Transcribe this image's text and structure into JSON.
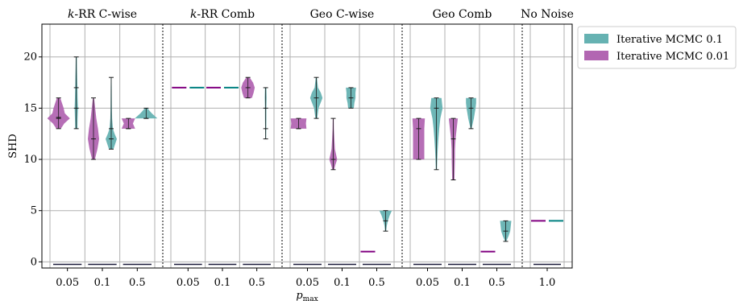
{
  "chart_data": {
    "type": "violin",
    "ylabel": "SHD",
    "xlabel": "p",
    "xlabel_sub": "max",
    "ylim": [
      -0.6,
      23.2
    ],
    "yticks": [
      0,
      5,
      10,
      15,
      20
    ],
    "grid": true,
    "legend_position": "outside-top-right",
    "series": [
      {
        "name": "Iterative MCMC  0.1",
        "color": "#66b2b2"
      },
      {
        "name": "Iterative MCMC  0.01",
        "color": "#b266b2"
      }
    ],
    "colors": {
      "teal_fill": "#66b2b2",
      "teal_line": "#008080",
      "purple_fill": "#b266b2",
      "purple_line": "#800080",
      "grid": "#b0b0b0",
      "floor_line": "#1a1a3a"
    },
    "panels": [
      {
        "title": "k-RR C-wise",
        "title_prefix": "k",
        "title_rest": "-RR C-wise",
        "groups": [
          {
            "label": "0.05",
            "violins": [
              {
                "series": 1,
                "min": 13,
                "max": 16,
                "median": 14,
                "mean": 14.1,
                "width": [
                  [
                    13,
                    0.2
                  ],
                  [
                    13.5,
                    0.5
                  ],
                  [
                    14,
                    1
                  ],
                  [
                    14.5,
                    0.55
                  ],
                  [
                    15,
                    0.45
                  ],
                  [
                    15.5,
                    0.3
                  ],
                  [
                    16,
                    0.15
                  ]
                ]
              },
              {
                "series": 0,
                "min": 13,
                "max": 20,
                "median": 15,
                "mean": 17,
                "width": [
                  [
                    13,
                    0.1
                  ],
                  [
                    14,
                    0.12
                  ],
                  [
                    15,
                    0.15
                  ],
                  [
                    16,
                    0.12
                  ],
                  [
                    17,
                    0.1
                  ],
                  [
                    18,
                    0.08
                  ],
                  [
                    19,
                    0.06
                  ],
                  [
                    20,
                    0.05
                  ]
                ]
              }
            ]
          },
          {
            "label": "0.1",
            "violins": [
              {
                "series": 1,
                "min": 10,
                "max": 16,
                "median": 12,
                "mean": 12,
                "width": [
                  [
                    10,
                    0.12
                  ],
                  [
                    11,
                    0.35
                  ],
                  [
                    12,
                    0.5
                  ],
                  [
                    13,
                    0.4
                  ],
                  [
                    14,
                    0.25
                  ],
                  [
                    15,
                    0.15
                  ],
                  [
                    16,
                    0.05
                  ]
                ]
              },
              {
                "series": 0,
                "min": 11,
                "max": 18,
                "median": 12,
                "mean": 13,
                "width": [
                  [
                    11,
                    0.2
                  ],
                  [
                    12,
                    0.5
                  ],
                  [
                    12.5,
                    0.3
                  ],
                  [
                    13,
                    0.15
                  ],
                  [
                    14,
                    0.08
                  ],
                  [
                    15,
                    0.06
                  ],
                  [
                    16,
                    0.05
                  ],
                  [
                    17,
                    0.04
                  ],
                  [
                    18,
                    0.03
                  ]
                ]
              }
            ]
          },
          {
            "label": "0.5",
            "violins": [
              {
                "series": 1,
                "min": 13,
                "max": 14,
                "median": 13,
                "mean": 13,
                "width": [
                  [
                    13,
                    0.6
                  ],
                  [
                    13.5,
                    0.4
                  ],
                  [
                    14,
                    0.6
                  ]
                ]
              },
              {
                "series": 0,
                "min": 14,
                "max": 15,
                "median": 14,
                "mean": 14,
                "width": [
                  [
                    14,
                    1
                  ],
                  [
                    14.5,
                    0.5
                  ],
                  [
                    15,
                    0.1
                  ]
                ]
              }
            ]
          }
        ]
      },
      {
        "title": "k-RR Comb",
        "title_prefix": "k",
        "title_rest": "-RR Comb",
        "groups": [
          {
            "label": "0.05",
            "violins": [
              {
                "series": 1,
                "min": 17,
                "max": 17,
                "median": 17,
                "mean": 17,
                "width": []
              },
              {
                "series": 0,
                "min": 17,
                "max": 17,
                "median": 17,
                "mean": 17,
                "width": []
              }
            ]
          },
          {
            "label": "0.1",
            "violins": [
              {
                "series": 1,
                "min": 17,
                "max": 17,
                "median": 17,
                "mean": 17,
                "width": []
              },
              {
                "series": 0,
                "min": 17,
                "max": 17,
                "median": 17,
                "mean": 17,
                "width": []
              }
            ]
          },
          {
            "label": "0.5",
            "violins": [
              {
                "series": 1,
                "min": 16,
                "max": 18,
                "median": 17,
                "mean": 17,
                "width": [
                  [
                    16,
                    0.35
                  ],
                  [
                    16.5,
                    0.5
                  ],
                  [
                    17,
                    0.6
                  ],
                  [
                    17.5,
                    0.45
                  ],
                  [
                    18,
                    0.15
                  ]
                ]
              },
              {
                "series": 0,
                "min": 12,
                "max": 17,
                "median": 15,
                "mean": 13,
                "width": [
                  [
                    12,
                    0.04
                  ],
                  [
                    13,
                    0.05
                  ],
                  [
                    14,
                    0.06
                  ],
                  [
                    15,
                    0.06
                  ],
                  [
                    16,
                    0.08
                  ],
                  [
                    17,
                    0.06
                  ]
                ]
              }
            ]
          }
        ]
      },
      {
        "title": "Geo C-wise",
        "title_prefix": "",
        "title_rest": "Geo C-wise",
        "groups": [
          {
            "label": "0.05",
            "violins": [
              {
                "series": 1,
                "min": 13,
                "max": 14,
                "median": 13,
                "mean": 13,
                "width": [
                  [
                    13,
                    0.7
                  ],
                  [
                    13.5,
                    0.65
                  ],
                  [
                    14,
                    0.7
                  ]
                ]
              },
              {
                "series": 0,
                "min": 14,
                "max": 18,
                "median": 16,
                "mean": 16,
                "width": [
                  [
                    14,
                    0.08
                  ],
                  [
                    15,
                    0.2
                  ],
                  [
                    16,
                    0.55
                  ],
                  [
                    16.5,
                    0.4
                  ],
                  [
                    17,
                    0.15
                  ],
                  [
                    18,
                    0.05
                  ]
                ]
              }
            ]
          },
          {
            "label": "0.1",
            "violins": [
              {
                "series": 1,
                "min": 9,
                "max": 14,
                "median": 10,
                "mean": 10,
                "width": [
                  [
                    9,
                    0.08
                  ],
                  [
                    9.5,
                    0.2
                  ],
                  [
                    10,
                    0.35
                  ],
                  [
                    10.5,
                    0.25
                  ],
                  [
                    11,
                    0.15
                  ],
                  [
                    12,
                    0.1
                  ],
                  [
                    13,
                    0.06
                  ],
                  [
                    14,
                    0.04
                  ]
                ]
              },
              {
                "series": 0,
                "min": 15,
                "max": 17,
                "median": 16,
                "mean": 16,
                "width": [
                  [
                    15,
                    0.25
                  ],
                  [
                    15.5,
                    0.3
                  ],
                  [
                    16,
                    0.4
                  ],
                  [
                    16.5,
                    0.4
                  ],
                  [
                    17,
                    0.45
                  ]
                ]
              }
            ]
          },
          {
            "label": "0.5",
            "violins": [
              {
                "series": 1,
                "min": 1,
                "max": 1,
                "median": 1,
                "mean": 1,
                "width": []
              },
              {
                "series": 0,
                "min": 3,
                "max": 5,
                "median": 4,
                "mean": 4,
                "width": [
                  [
                    3,
                    0.05
                  ],
                  [
                    3.5,
                    0.1
                  ],
                  [
                    4,
                    0.2
                  ],
                  [
                    4.5,
                    0.35
                  ],
                  [
                    5,
                    0.55
                  ]
                ]
              }
            ]
          }
        ]
      },
      {
        "title": "Geo Comb",
        "title_prefix": "",
        "title_rest": "Geo Comb",
        "groups": [
          {
            "label": "0.05",
            "violins": [
              {
                "series": 1,
                "min": 10,
                "max": 14,
                "median": 13,
                "mean": 13,
                "width": [
                  [
                    10,
                    0.5
                  ],
                  [
                    11,
                    0.5
                  ],
                  [
                    12,
                    0.5
                  ],
                  [
                    13,
                    0.5
                  ],
                  [
                    14,
                    0.55
                  ]
                ]
              },
              {
                "series": 0,
                "min": 9,
                "max": 16,
                "median": 15,
                "mean": 15,
                "width": [
                  [
                    9,
                    0.05
                  ],
                  [
                    10,
                    0.08
                  ],
                  [
                    11,
                    0.12
                  ],
                  [
                    12,
                    0.18
                  ],
                  [
                    13,
                    0.25
                  ],
                  [
                    14,
                    0.35
                  ],
                  [
                    15,
                    0.55
                  ],
                  [
                    16,
                    0.45
                  ]
                ]
              }
            ]
          },
          {
            "label": "0.1",
            "violins": [
              {
                "series": 1,
                "min": 8,
                "max": 14,
                "median": 12,
                "mean": 12,
                "width": [
                  [
                    8,
                    0.1
                  ],
                  [
                    9,
                    0.12
                  ],
                  [
                    10,
                    0.14
                  ],
                  [
                    11,
                    0.15
                  ],
                  [
                    12,
                    0.2
                  ],
                  [
                    13,
                    0.3
                  ],
                  [
                    14,
                    0.4
                  ]
                ]
              },
              {
                "series": 0,
                "min": 13,
                "max": 16,
                "median": 15,
                "mean": 15,
                "width": [
                  [
                    13,
                    0.05
                  ],
                  [
                    14,
                    0.25
                  ],
                  [
                    15,
                    0.4
                  ],
                  [
                    15.5,
                    0.45
                  ],
                  [
                    16,
                    0.45
                  ]
                ]
              }
            ]
          },
          {
            "label": "0.5",
            "violins": [
              {
                "series": 1,
                "min": 1,
                "max": 1,
                "median": 1,
                "mean": 1,
                "width": []
              },
              {
                "series": 0,
                "min": 2,
                "max": 4,
                "median": 3,
                "mean": 3,
                "width": [
                  [
                    2,
                    0.05
                  ],
                  [
                    2.5,
                    0.25
                  ],
                  [
                    3,
                    0.4
                  ],
                  [
                    3.5,
                    0.45
                  ],
                  [
                    4,
                    0.5
                  ]
                ]
              }
            ]
          }
        ]
      },
      {
        "title": "No Noise",
        "title_prefix": "",
        "title_rest": "No Noise",
        "groups": [
          {
            "label": "1.0",
            "violins": [
              {
                "series": 1,
                "min": 4,
                "max": 4,
                "median": 4,
                "mean": 4,
                "width": []
              },
              {
                "series": 0,
                "min": 4,
                "max": 4,
                "median": 4,
                "mean": 4,
                "width": []
              }
            ]
          }
        ]
      }
    ]
  }
}
